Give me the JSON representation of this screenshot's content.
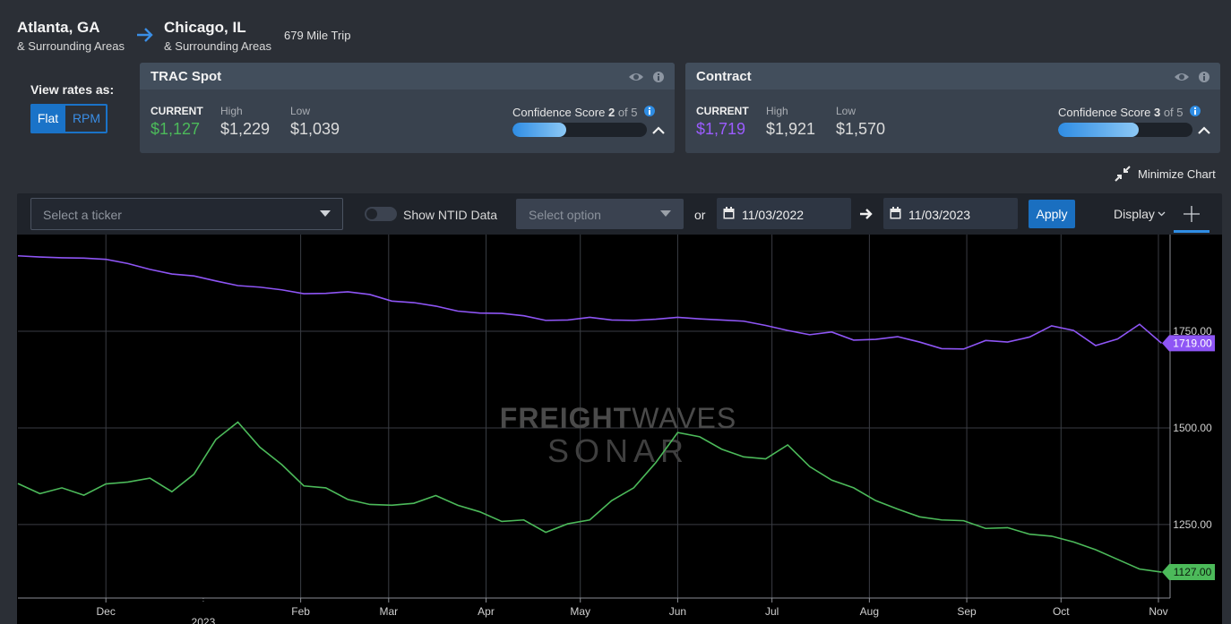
{
  "header": {
    "origin": "Atlanta, GA",
    "origin_sub": "& Surrounding Areas",
    "destination": "Chicago, IL",
    "destination_sub": "& Surrounding Areas",
    "trip": "679 Mile Trip"
  },
  "view_rates": {
    "label": "View rates as:",
    "options": [
      "Flat",
      "RPM"
    ]
  },
  "cards": [
    {
      "title": "TRAC Spot",
      "current_label": "CURRENT",
      "current": "$1,127",
      "high_label": "High",
      "high": "$1,229",
      "low_label": "Low",
      "low": "$1,039",
      "confidence_label": "Confidence Score",
      "score": 2,
      "score_of_label": "of",
      "score_max": 5,
      "current_color": "#4cba5a"
    },
    {
      "title": "Contract",
      "current_label": "CURRENT",
      "current": "$1,719",
      "high_label": "High",
      "high": "$1,921",
      "low_label": "Low",
      "low": "$1,570",
      "confidence_label": "Confidence Score",
      "score": 3,
      "score_of_label": "of",
      "score_max": 5,
      "current_color": "#9b5cff"
    }
  ],
  "minimize": "Minimize Chart",
  "toolbar": {
    "ticker_placeholder": "Select a ticker",
    "ntid": "Show NTID Data",
    "option_placeholder": "Select option",
    "or": "or",
    "start_date": "11/03/2022",
    "end_date": "11/03/2023",
    "apply": "Apply",
    "display": "Display"
  },
  "chart_data": {
    "type": "line",
    "watermark": {
      "brand_bold": "FREIGHT",
      "brand_light": "WAVES",
      "product": "SONAR"
    },
    "x": [
      0,
      7,
      14,
      21,
      28,
      35,
      42,
      49,
      56,
      63,
      70,
      77,
      84,
      91,
      98,
      105,
      112,
      119,
      126,
      133,
      140,
      147,
      154,
      161,
      168,
      175,
      182,
      189,
      196,
      203,
      210,
      217,
      224,
      231,
      238,
      245,
      252,
      259,
      266,
      273,
      280,
      287,
      294,
      301,
      308,
      315,
      322,
      329,
      336,
      343,
      350,
      357,
      364
    ],
    "xlim": [
      0,
      365
    ],
    "xticks": [
      {
        "value": 28,
        "label": "Dec"
      },
      {
        "value": 90,
        "label": "Feb"
      },
      {
        "value": 118,
        "label": "Mar"
      },
      {
        "value": 149,
        "label": "Apr"
      },
      {
        "value": 179,
        "label": "May"
      },
      {
        "value": 210,
        "label": "Jun"
      },
      {
        "value": 240,
        "label": "Jul"
      },
      {
        "value": 271,
        "label": "Aug"
      },
      {
        "value": 302,
        "label": "Sep"
      },
      {
        "value": 332,
        "label": "Oct"
      },
      {
        "value": 363,
        "label": "Nov"
      }
    ],
    "year_tick": {
      "value": 59,
      "label": "2023"
    },
    "ylim": [
      1060,
      2000
    ],
    "yticks": [
      {
        "value": 1250,
        "label": "1250.00"
      },
      {
        "value": 1500,
        "label": "1500.00"
      },
      {
        "value": 1750,
        "label": "1750.00"
      }
    ],
    "grid": true,
    "series": [
      {
        "color": "#8e55f5",
        "last_label": "1719.00",
        "values": [
          1945,
          1942,
          1940,
          1939,
          1936,
          1925,
          1910,
          1898,
          1893,
          1880,
          1868,
          1864,
          1857,
          1847,
          1848,
          1852,
          1845,
          1828,
          1824,
          1815,
          1802,
          1797,
          1796,
          1790,
          1778,
          1779,
          1786,
          1779,
          1778,
          1781,
          1786,
          1782,
          1779,
          1776,
          1765,
          1752,
          1741,
          1748,
          1727,
          1729,
          1736,
          1722,
          1705,
          1704,
          1726,
          1722,
          1735,
          1764,
          1752,
          1713,
          1730,
          1768,
          1719
        ]
      },
      {
        "color": "#4cba5a",
        "last_label": "1127.00",
        "values": [
          1356,
          1330,
          1345,
          1326,
          1355,
          1360,
          1370,
          1335,
          1380,
          1470,
          1515,
          1450,
          1405,
          1350,
          1345,
          1315,
          1302,
          1300,
          1305,
          1325,
          1300,
          1283,
          1258,
          1262,
          1230,
          1252,
          1262,
          1312,
          1345,
          1410,
          1488,
          1477,
          1445,
          1425,
          1420,
          1456,
          1400,
          1365,
          1345,
          1312,
          1290,
          1270,
          1262,
          1260,
          1240,
          1242,
          1225,
          1220,
          1205,
          1185,
          1160,
          1135,
          1127
        ]
      }
    ]
  }
}
